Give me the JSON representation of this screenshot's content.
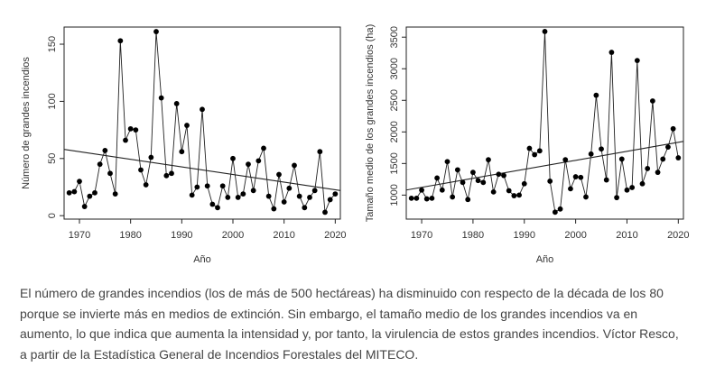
{
  "caption": "El número de grandes incendios (los de más de 500 hectáreas) ha disminuido con respecto de la década de los 80 porque se invierte más en medios de extinción. Sin embargo, el tamaño medio de los grandes incendios va en aumento, lo que indica que aumenta la intensidad y, por tanto, la virulencia de estos grandes incendios. Víctor Resco, a partir de la Estadística General de Incendios Forestales del MITECO.",
  "chart_data": [
    {
      "type": "line",
      "title": "",
      "xlabel": "Año",
      "ylabel": "Número de grandes incendios",
      "xlim": [
        1967,
        2021
      ],
      "ylim": [
        -3,
        165
      ],
      "xticks": [
        1970,
        1980,
        1990,
        2000,
        2010,
        2020
      ],
      "yticks": [
        0,
        50,
        100,
        150
      ],
      "grid": false,
      "legend": "none",
      "markers": "filled circles joined by a line",
      "trend_line": {
        "x": [
          1967,
          2021
        ],
        "y": [
          58,
          22
        ]
      },
      "x": [
        1968,
        1969,
        1970,
        1971,
        1972,
        1973,
        1974,
        1975,
        1976,
        1977,
        1978,
        1979,
        1980,
        1981,
        1982,
        1983,
        1984,
        1985,
        1986,
        1987,
        1988,
        1989,
        1990,
        1991,
        1992,
        1993,
        1994,
        1995,
        1996,
        1997,
        1998,
        1999,
        2000,
        2001,
        2002,
        2003,
        2004,
        2005,
        2006,
        2007,
        2008,
        2009,
        2010,
        2011,
        2012,
        2013,
        2014,
        2015,
        2016,
        2017,
        2018,
        2019,
        2020
      ],
      "y": [
        20,
        21,
        30,
        8,
        17,
        20,
        45,
        57,
        37,
        19,
        153,
        66,
        76,
        75,
        40,
        27,
        51,
        161,
        103,
        35,
        37,
        98,
        56,
        79,
        18,
        25,
        93,
        26,
        10,
        7,
        26,
        16,
        50,
        16,
        19,
        45,
        22,
        48,
        59,
        17,
        6,
        36,
        12,
        24,
        44,
        17,
        7,
        16,
        22,
        56,
        3,
        14,
        19
      ]
    },
    {
      "type": "line",
      "title": "",
      "xlabel": "Año",
      "ylabel": "Tamaño medio de los grandes incendios (ha)",
      "xlim": [
        1967,
        2021
      ],
      "ylim": [
        620,
        3660
      ],
      "xticks": [
        1970,
        1980,
        1990,
        2000,
        2010,
        2020
      ],
      "yticks": [
        1000,
        1500,
        2000,
        2500,
        3000,
        3500
      ],
      "grid": false,
      "legend": "none",
      "markers": "filled circles joined by a line",
      "trend_line": {
        "x": [
          1967,
          2021
        ],
        "y": [
          1080,
          1850
        ]
      },
      "x": [
        1968,
        1969,
        1970,
        1971,
        1972,
        1973,
        1974,
        1975,
        1976,
        1977,
        1978,
        1979,
        1980,
        1981,
        1982,
        1983,
        1984,
        1985,
        1986,
        1987,
        1988,
        1989,
        1990,
        1991,
        1992,
        1993,
        1994,
        1995,
        1996,
        1997,
        1998,
        1999,
        2000,
        2001,
        2002,
        2003,
        2004,
        2005,
        2006,
        2007,
        2008,
        2009,
        2010,
        2011,
        2012,
        2013,
        2014,
        2015,
        2016,
        2017,
        2018,
        2019,
        2020
      ],
      "y": [
        950,
        950,
        1080,
        940,
        950,
        1270,
        1080,
        1530,
        970,
        1400,
        1200,
        930,
        1360,
        1230,
        1200,
        1560,
        1050,
        1330,
        1310,
        1070,
        990,
        1000,
        1180,
        1740,
        1640,
        1700,
        3590,
        1220,
        730,
        780,
        1560,
        1100,
        1290,
        1280,
        970,
        1650,
        2580,
        1730,
        1240,
        3260,
        960,
        1570,
        1080,
        1120,
        3130,
        1180,
        1420,
        2490,
        1360,
        1570,
        1760,
        2050,
        1590
      ]
    }
  ]
}
